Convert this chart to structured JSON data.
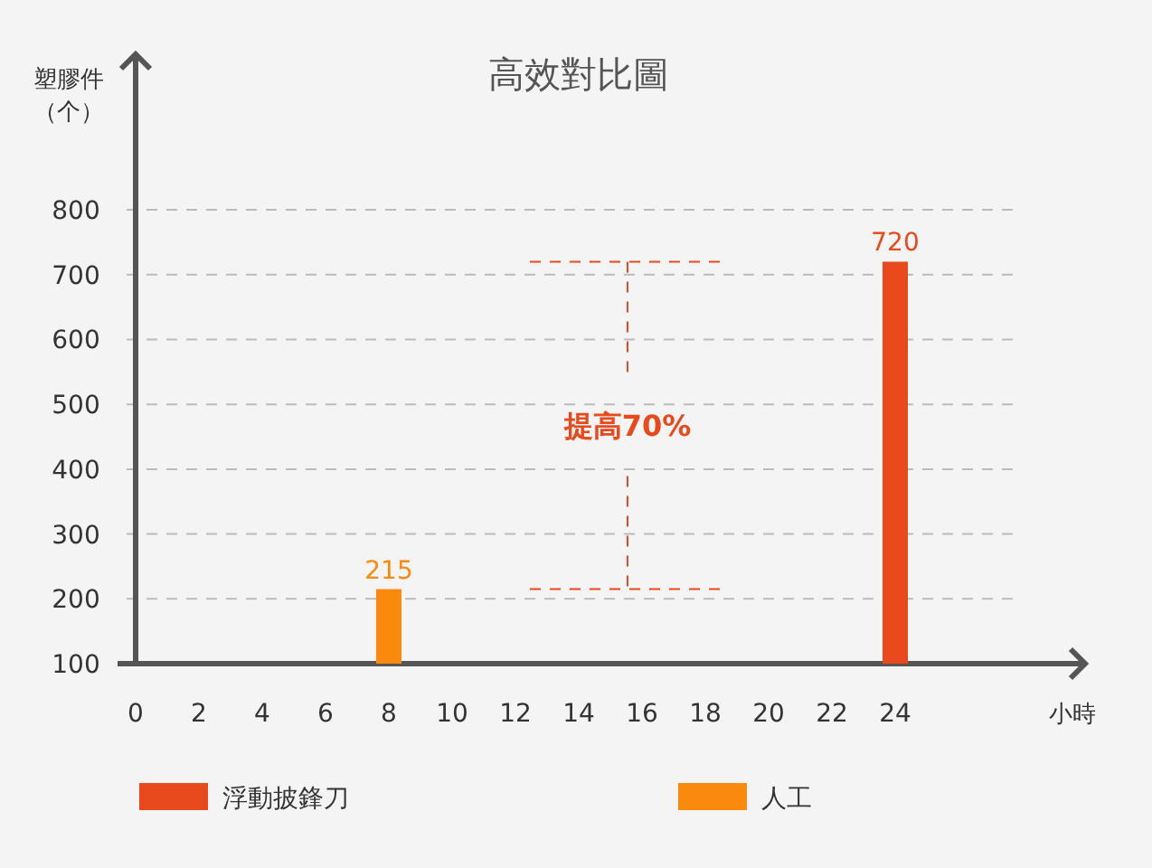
{
  "chart_data": {
    "type": "bar",
    "title": "高效對比圖",
    "xlabel": "小時",
    "ylabel": "塑膠件（个）",
    "xlim": [
      0,
      30
    ],
    "xticks": [
      0,
      2,
      4,
      6,
      8,
      10,
      12,
      14,
      16,
      18,
      20,
      22,
      24
    ],
    "ylim": [
      100,
      1040
    ],
    "yticks": [
      100,
      200,
      300,
      400,
      500,
      600,
      700,
      800
    ],
    "series": [
      {
        "name": "浮動披鋒刀",
        "color": "#e8491d",
        "x": [
          24
        ],
        "values": [
          720
        ]
      },
      {
        "name": "人工",
        "color": "#f98a0e",
        "x": [
          8
        ],
        "values": [
          215
        ]
      }
    ],
    "data_labels": true,
    "grid": "y",
    "legend": "bottom",
    "annotations": [
      "提高70%"
    ]
  }
}
